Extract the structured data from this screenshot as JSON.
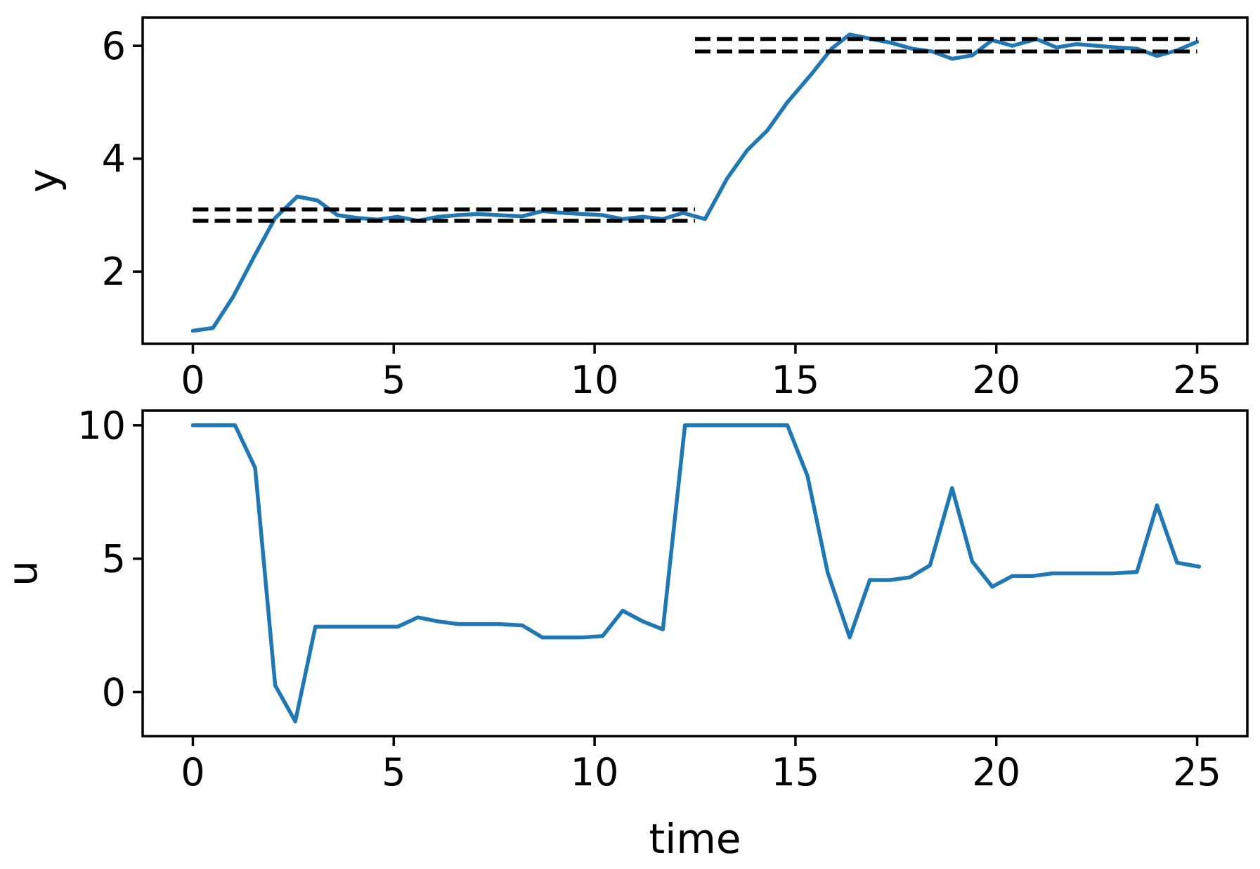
{
  "chart_data": [
    {
      "type": "line",
      "title": "",
      "xlabel": "",
      "ylabel": "y",
      "xlim": [
        -1.25,
        26.25
      ],
      "ylim": [
        0.72,
        6.5
      ],
      "xticks": [
        0,
        5,
        10,
        15,
        20,
        25
      ],
      "xtick_labels": [
        "0",
        "5",
        "10",
        "15",
        "20",
        "25"
      ],
      "yticks": [
        2,
        4,
        6
      ],
      "ytick_labels": [
        "2",
        "4",
        "6"
      ],
      "grid": false,
      "series": [
        {
          "color": "#1f77b4",
          "style": "solid",
          "x": [
            0,
            0.5,
            1.0,
            1.55,
            2.05,
            2.6,
            3.1,
            3.6,
            4.1,
            4.6,
            5.1,
            5.6,
            6.1,
            6.6,
            7.1,
            7.6,
            8.2,
            8.7,
            9.2,
            9.7,
            10.2,
            10.7,
            11.2,
            11.7,
            12.2,
            12.75,
            13.3,
            13.8,
            14.3,
            14.8,
            15.4,
            15.9,
            16.35,
            16.9,
            17.4,
            17.9,
            18.4,
            18.9,
            19.4,
            19.9,
            20.4,
            21.0,
            21.5,
            22.0,
            22.5,
            23.0,
            23.5,
            24.0,
            24.5,
            25.0
          ],
          "y": [
            0.95,
            1.0,
            1.55,
            2.3,
            2.95,
            3.33,
            3.26,
            3.0,
            2.95,
            2.92,
            2.97,
            2.9,
            2.97,
            3.0,
            3.02,
            3.0,
            2.98,
            3.07,
            3.04,
            3.02,
            3.0,
            2.93,
            2.97,
            2.93,
            3.04,
            2.93,
            3.65,
            4.15,
            4.5,
            5.0,
            5.5,
            5.95,
            6.2,
            6.12,
            6.05,
            5.95,
            5.9,
            5.77,
            5.83,
            6.1,
            6.0,
            6.12,
            5.97,
            6.03,
            6.0,
            5.97,
            5.95,
            5.82,
            5.92,
            6.07
          ]
        },
        {
          "color": "#000000",
          "style": "dashed",
          "x": [
            0,
            12.5
          ],
          "y": [
            3.1,
            3.1
          ]
        },
        {
          "color": "#000000",
          "style": "dashed",
          "x": [
            0,
            12.5
          ],
          "y": [
            2.9,
            2.9
          ]
        },
        {
          "color": "#000000",
          "style": "dashed",
          "x": [
            12.5,
            25
          ],
          "y": [
            6.12,
            6.12
          ]
        },
        {
          "color": "#000000",
          "style": "dashed",
          "x": [
            12.5,
            25
          ],
          "y": [
            5.9,
            5.9
          ]
        }
      ]
    },
    {
      "type": "line",
      "title": "",
      "xlabel": "time",
      "ylabel": "u",
      "xlim": [
        -1.25,
        26.25
      ],
      "ylim": [
        -1.65,
        10.55
      ],
      "xticks": [
        0,
        5,
        10,
        15,
        20,
        25
      ],
      "xtick_labels": [
        "0",
        "5",
        "10",
        "15",
        "20",
        "25"
      ],
      "yticks": [
        0,
        5,
        10
      ],
      "ytick_labels": [
        "0",
        "5",
        "10"
      ],
      "grid": false,
      "series": [
        {
          "color": "#1f77b4",
          "style": "solid",
          "x": [
            0,
            0.5,
            1.05,
            1.55,
            2.05,
            2.55,
            3.05,
            3.55,
            4.05,
            4.55,
            5.1,
            5.6,
            6.1,
            6.6,
            7.1,
            7.6,
            8.2,
            8.7,
            9.2,
            9.7,
            10.2,
            10.7,
            11.2,
            11.7,
            12.25,
            12.75,
            13.25,
            13.75,
            14.25,
            14.8,
            15.3,
            15.8,
            16.35,
            16.85,
            17.35,
            17.85,
            18.35,
            18.9,
            19.4,
            19.9,
            20.4,
            20.9,
            21.4,
            21.9,
            22.4,
            22.9,
            23.5,
            24.0,
            24.5,
            25.05
          ],
          "y": [
            10,
            10,
            10,
            8.4,
            0.25,
            -1.1,
            2.45,
            2.45,
            2.45,
            2.45,
            2.45,
            2.8,
            2.65,
            2.55,
            2.55,
            2.55,
            2.5,
            2.05,
            2.05,
            2.05,
            2.1,
            3.05,
            2.65,
            2.35,
            10,
            10,
            10,
            10,
            10,
            10,
            8.1,
            4.5,
            2.05,
            4.2,
            4.2,
            4.3,
            4.75,
            7.65,
            4.9,
            3.95,
            4.35,
            4.35,
            4.45,
            4.45,
            4.45,
            4.45,
            4.5,
            7.0,
            4.85,
            4.7
          ]
        }
      ]
    }
  ]
}
